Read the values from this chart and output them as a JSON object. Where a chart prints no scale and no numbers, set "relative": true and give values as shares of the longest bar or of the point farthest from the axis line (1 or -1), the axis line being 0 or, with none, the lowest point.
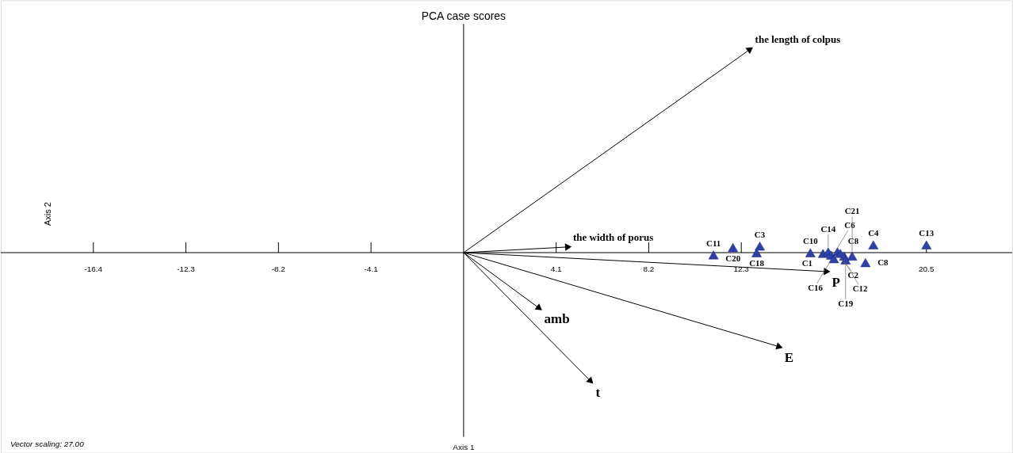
{
  "chart_data": {
    "type": "scatter",
    "title": "PCA case scores",
    "ylabel": "Axis 2",
    "relative": true,
    "xlim": [
      -20.5,
      24.3
    ],
    "xticks": [
      -16.4,
      -12.3,
      -8.2,
      -4.1,
      4.1,
      8.2,
      12.3,
      20.5
    ],
    "grid": false,
    "marker": "triangle",
    "series": [
      {
        "type": "line",
        "name": "the length of colpus",
        "color": "#000000",
        "x": [
          0,
          12.7
        ],
        "values": [
          0,
          1.0
        ]
      },
      {
        "type": "line",
        "name": "the width of porus",
        "color": "#000000",
        "x": [
          0,
          4.64
        ],
        "values": [
          0,
          0.028
        ]
      },
      {
        "type": "line",
        "name": "amb",
        "color": "#000000",
        "x": [
          0,
          3.36
        ],
        "values": [
          0,
          -0.274
        ]
      },
      {
        "type": "line",
        "name": "t",
        "color": "#000000",
        "x": [
          0,
          5.64
        ],
        "values": [
          0,
          -0.633
        ]
      },
      {
        "type": "line",
        "name": "E",
        "color": "#000000",
        "x": [
          0,
          14.0
        ],
        "values": [
          0,
          -0.463
        ]
      },
      {
        "type": "line",
        "name": "P",
        "color": "#000000",
        "x": [
          0,
          16.1
        ],
        "values": [
          0,
          -0.093
        ]
      },
      {
        "color": "#2f3fa8",
        "x": [
          11.07,
          11.93,
          13.12,
          12.98,
          15.36,
          15.92,
          16.15,
          16.28,
          16.4,
          16.56,
          16.69,
          16.86,
          17.21,
          16.92,
          18.15,
          20.5,
          17.8
        ],
        "values": [
          -0.011,
          0.025,
          0.032,
          -0.001,
          -0.001,
          -0.004,
          0.004,
          -0.012,
          -0.03,
          0.004,
          -0.004,
          -0.017,
          -0.017,
          -0.036,
          0.038,
          0.038,
          -0.049
        ]
      }
    ],
    "annotations": [
      {
        "text": "C11",
        "x": 11.07,
        "y": -0.011
      },
      {
        "text": "C20",
        "x": 11.93,
        "y": 0.025
      },
      {
        "text": "C3",
        "x": 13.12,
        "y": 0.032
      },
      {
        "text": "C18",
        "x": 12.98,
        "y": -0.001
      },
      {
        "text": "C10",
        "x": 15.36,
        "y": -0.001
      },
      {
        "text": "C1",
        "x": 15.92,
        "y": -0.004
      },
      {
        "text": "C14",
        "x": 16.15,
        "y": 0.004
      },
      {
        "text": "C16",
        "x": 16.28,
        "y": -0.012
      },
      {
        "text": "C6",
        "x": 16.4,
        "y": -0.03
      },
      {
        "text": "C8",
        "x": 16.56,
        "y": 0.004
      },
      {
        "text": "C2",
        "x": 16.69,
        "y": -0.004
      },
      {
        "text": "C12",
        "x": 16.86,
        "y": -0.017
      },
      {
        "text": "C21",
        "x": 17.21,
        "y": -0.017
      },
      {
        "text": "C19",
        "x": 16.92,
        "y": -0.036
      },
      {
        "text": "C4",
        "x": 18.15,
        "y": 0.038
      },
      {
        "text": "C13",
        "x": 20.5,
        "y": 0.038
      },
      {
        "text": "C8",
        "x": 17.8,
        "y": -0.049
      },
      "Axis 1",
      "Vector scaling: 27.00"
    ]
  }
}
